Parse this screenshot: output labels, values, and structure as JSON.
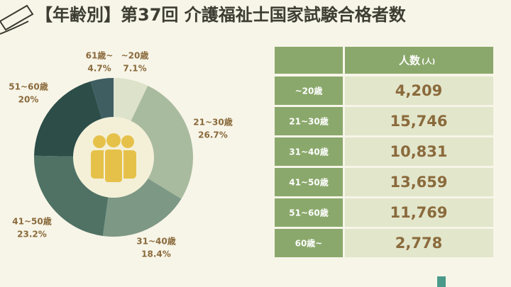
{
  "chart_data": {
    "type": "pie",
    "donut": true,
    "title": "【年齢別】第37回 介護福祉士国家試験合格者数",
    "categories": [
      "~20歳",
      "21~30歳",
      "31~40歳",
      "41~50歳",
      "51~60歳",
      "61歳~"
    ],
    "values": [
      7.1,
      26.7,
      18.4,
      23.2,
      20,
      4.7
    ],
    "value_labels": [
      "7.1%",
      "26.7%",
      "18.4%",
      "23.2%",
      "20%",
      "4.7%"
    ],
    "colors": [
      "#dde2cb",
      "#a9bb9f",
      "#7d9885",
      "#4f7265",
      "#2c4d48",
      "#3e5e62"
    ]
  },
  "table": {
    "header": {
      "title": "人数",
      "unit": "(人)"
    },
    "rows": [
      [
        "~20歳",
        "4,209"
      ],
      [
        "21~30歳",
        "15,746"
      ],
      [
        "31~40歳",
        "10,831"
      ],
      [
        "41~50歳",
        "13,659"
      ],
      [
        "51~60歳",
        "11,769"
      ],
      [
        "60歳~",
        "2,778"
      ]
    ]
  }
}
